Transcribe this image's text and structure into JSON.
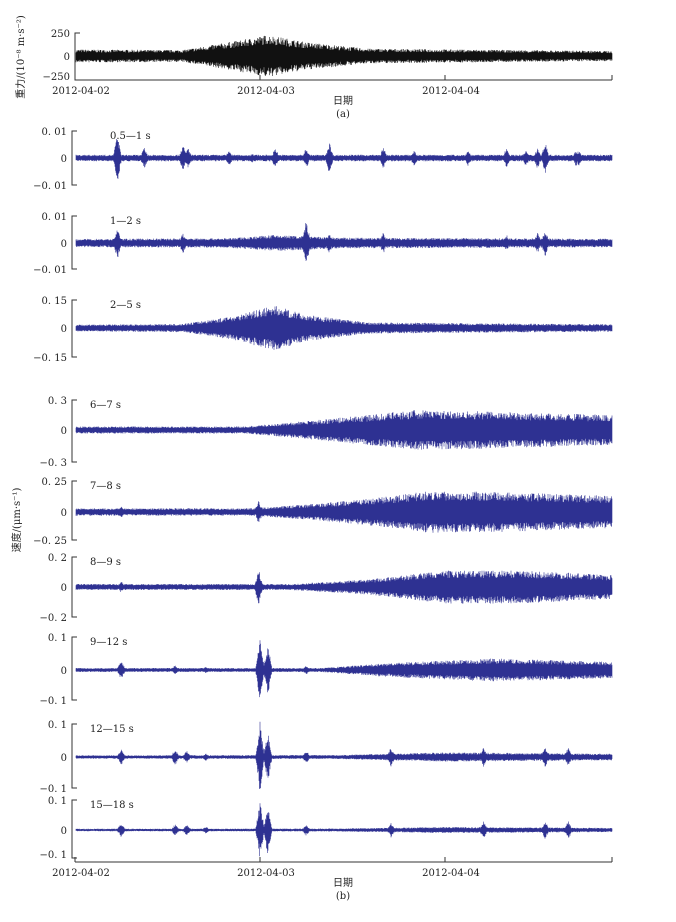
{
  "chart_data": [
    {
      "type": "line",
      "panel": "(a)",
      "ylabel": "重力/(10⁻⁸ m·s⁻²)",
      "xlabel": "日期",
      "caption": "(a)",
      "xticks": [
        "2012-04-02",
        "2012-04-03",
        "2012-04-04"
      ],
      "xlim": [
        "2012-04-02 00:00",
        "2012-04-04 21:36"
      ],
      "ylim": [
        -250,
        250
      ],
      "yticks": [
        "250",
        "0",
        "-250"
      ],
      "color": "#111111",
      "envelope": [
        [
          "2012-04-02 00:00",
          70
        ],
        [
          "2012-04-02 14:00",
          65
        ],
        [
          "2012-04-02 22:00",
          180
        ],
        [
          "2012-04-03 01:00",
          230
        ],
        [
          "2012-04-03 06:00",
          150
        ],
        [
          "2012-04-03 14:00",
          80
        ],
        [
          "2012-04-04 21:36",
          55
        ]
      ],
      "spikes": []
    },
    {
      "type": "line",
      "band": "0.5—1 s",
      "ylim": [
        -0.01,
        0.01
      ],
      "yticks": [
        "0.01",
        "0",
        "-0.01"
      ],
      "color": "#2e3192",
      "envelope": [
        [
          "2012-04-02 00:00",
          0.0012
        ],
        [
          "2012-04-04 21:36",
          0.0012
        ]
      ],
      "spikes": [
        [
          "2012-04-02 05:30",
          0.009
        ],
        [
          "2012-04-02 09:00",
          0.004
        ],
        [
          "2012-04-02 14:00",
          0.005
        ],
        [
          "2012-04-02 14:40",
          0.004
        ],
        [
          "2012-04-02 20:00",
          0.003
        ],
        [
          "2012-04-02 23:00",
          0.002
        ],
        [
          "2012-04-03 02:00",
          0.004
        ],
        [
          "2012-04-03 06:00",
          0.004
        ],
        [
          "2012-04-03 09:00",
          0.006
        ],
        [
          "2012-04-03 16:00",
          0.004
        ],
        [
          "2012-04-03 20:00",
          0.003
        ],
        [
          "2012-04-04 03:00",
          0.003
        ],
        [
          "2012-04-04 08:00",
          0.004
        ],
        [
          "2012-04-04 10:30",
          0.003
        ],
        [
          "2012-04-04 12:00",
          0.004
        ],
        [
          "2012-04-04 13:00",
          0.006
        ],
        [
          "2012-04-04 17:00",
          0.003
        ],
        [
          "2012-04-04 17:20",
          0.003
        ]
      ]
    },
    {
      "type": "line",
      "band": "1—2 s",
      "ylim": [
        -0.01,
        0.01
      ],
      "yticks": [
        "0.01",
        "0",
        "-0.01"
      ],
      "color": "#2e3192",
      "envelope": [
        [
          "2012-04-02 00:00",
          0.0015
        ],
        [
          "2012-04-02 20:00",
          0.0018
        ],
        [
          "2012-04-03 02:00",
          0.003
        ],
        [
          "2012-04-03 10:00",
          0.002
        ],
        [
          "2012-04-04 21:36",
          0.0016
        ]
      ],
      "spikes": [
        [
          "2012-04-02 05:30",
          0.006
        ],
        [
          "2012-04-02 14:00",
          0.004
        ],
        [
          "2012-04-03 02:00",
          0.003
        ],
        [
          "2012-04-03 06:00",
          0.009
        ],
        [
          "2012-04-03 09:00",
          0.004
        ],
        [
          "2012-04-03 16:00",
          0.004
        ],
        [
          "2012-04-04 08:00",
          0.003
        ],
        [
          "2012-04-04 12:00",
          0.004
        ],
        [
          "2012-04-04 13:00",
          0.005
        ]
      ]
    },
    {
      "type": "line",
      "band": "2—5 s",
      "ylim": [
        -0.15,
        0.15
      ],
      "yticks": [
        "0.15",
        "0",
        "-0.15"
      ],
      "color": "#2e3192",
      "envelope": [
        [
          "2012-04-02 00:00",
          0.018
        ],
        [
          "2012-04-02 14:00",
          0.022
        ],
        [
          "2012-04-02 20:00",
          0.06
        ],
        [
          "2012-04-03 02:00",
          0.12
        ],
        [
          "2012-04-03 06:00",
          0.07
        ],
        [
          "2012-04-03 14:00",
          0.03
        ],
        [
          "2012-04-04 21:36",
          0.02
        ]
      ],
      "spikes": []
    },
    {
      "type": "line",
      "band": "6—7 s",
      "ylim": [
        -0.3,
        0.3
      ],
      "yticks": [
        "0.3",
        "0",
        "-0.3"
      ],
      "color": "#2e3192",
      "envelope": [
        [
          "2012-04-02 00:00",
          0.035
        ],
        [
          "2012-04-02 22:00",
          0.035
        ],
        [
          "2012-04-03 06:00",
          0.09
        ],
        [
          "2012-04-03 14:00",
          0.15
        ],
        [
          "2012-04-03 20:00",
          0.2
        ],
        [
          "2012-04-04 04:00",
          0.19
        ],
        [
          "2012-04-04 21:36",
          0.15
        ]
      ],
      "spikes": []
    },
    {
      "type": "line",
      "band": "7—8 s",
      "ylim": [
        -0.25,
        0.25
      ],
      "yticks": [
        "0.25",
        "0",
        "-0.25"
      ],
      "color": "#2e3192",
      "envelope": [
        [
          "2012-04-02 00:00",
          0.03
        ],
        [
          "2012-04-02 23:00",
          0.03
        ],
        [
          "2012-04-03 08:00",
          0.07
        ],
        [
          "2012-04-03 16:00",
          0.12
        ],
        [
          "2012-04-03 22:00",
          0.17
        ],
        [
          "2012-04-04 08:00",
          0.16
        ],
        [
          "2012-04-04 21:36",
          0.13
        ]
      ],
      "spikes": [
        [
          "2012-04-02 06:00",
          0.05
        ],
        [
          "2012-04-02 23:50",
          0.1
        ]
      ]
    },
    {
      "type": "line",
      "band": "8—9 s",
      "ylim": [
        -0.2,
        0.2
      ],
      "yticks": [
        "0.2",
        "0",
        "-0.2"
      ],
      "color": "#2e3192",
      "envelope": [
        [
          "2012-04-02 00:00",
          0.02
        ],
        [
          "2012-04-03 04:00",
          0.02
        ],
        [
          "2012-04-03 14:00",
          0.05
        ],
        [
          "2012-04-04 00:00",
          0.11
        ],
        [
          "2012-04-04 10:00",
          0.11
        ],
        [
          "2012-04-04 21:36",
          0.08
        ]
      ],
      "spikes": [
        [
          "2012-04-02 06:00",
          0.04
        ],
        [
          "2012-04-02 23:50",
          0.12
        ]
      ]
    },
    {
      "type": "line",
      "band": "9—12 s",
      "ylim": [
        -0.1,
        0.1
      ],
      "yticks": [
        "0.1",
        "0",
        "-0.1"
      ],
      "color": "#2e3192",
      "envelope": [
        [
          "2012-04-02 00:00",
          0.006
        ],
        [
          "2012-04-03 08:00",
          0.006
        ],
        [
          "2012-04-03 16:00",
          0.02
        ],
        [
          "2012-04-04 06:00",
          0.035
        ],
        [
          "2012-04-04 21:36",
          0.025
        ]
      ],
      "spikes": [
        [
          "2012-04-02 06:00",
          0.03
        ],
        [
          "2012-04-02 13:00",
          0.015
        ],
        [
          "2012-04-02 17:00",
          0.01
        ],
        [
          "2012-04-03 00:00",
          0.1
        ],
        [
          "2012-04-03 01:00",
          0.08
        ],
        [
          "2012-04-03 06:00",
          0.015
        ],
        [
          "2012-04-04 05:00",
          0.03
        ],
        [
          "2012-04-04 13:00",
          0.03
        ]
      ]
    },
    {
      "type": "line",
      "band": "12—15 s",
      "ylim": [
        -0.1,
        0.1
      ],
      "yticks": [
        "0.1",
        "0",
        "-0.1"
      ],
      "color": "#2e3192",
      "envelope": [
        [
          "2012-04-02 00:00",
          0.005
        ],
        [
          "2012-04-03 10:00",
          0.006
        ],
        [
          "2012-04-04 00:00",
          0.014
        ],
        [
          "2012-04-04 21:36",
          0.01
        ]
      ],
      "spikes": [
        [
          "2012-04-02 06:00",
          0.025
        ],
        [
          "2012-04-02 13:00",
          0.025
        ],
        [
          "2012-04-02 14:30",
          0.02
        ],
        [
          "2012-04-02 17:00",
          0.012
        ],
        [
          "2012-04-03 00:00",
          0.11
        ],
        [
          "2012-04-03 01:00",
          0.08
        ],
        [
          "2012-04-03 06:00",
          0.02
        ],
        [
          "2012-04-03 17:00",
          0.03
        ],
        [
          "2012-04-04 05:00",
          0.03
        ],
        [
          "2012-04-04 13:00",
          0.03
        ],
        [
          "2012-04-04 16:00",
          0.03
        ]
      ]
    },
    {
      "type": "line",
      "band": "15—18 s",
      "ylim": [
        -0.1,
        0.1
      ],
      "yticks": [
        "0.1",
        "0",
        "-0.1"
      ],
      "color": "#2e3192",
      "xlabel": "日期",
      "caption": "(b)",
      "xticks": [
        "2012-04-02",
        "2012-04-03",
        "2012-04-04"
      ],
      "envelope": [
        [
          "2012-04-02 00:00",
          0.004
        ],
        [
          "2012-04-03 10:00",
          0.005
        ],
        [
          "2012-04-04 00:00",
          0.01
        ],
        [
          "2012-04-04 21:36",
          0.007
        ]
      ],
      "spikes": [
        [
          "2012-04-02 06:00",
          0.025
        ],
        [
          "2012-04-02 13:00",
          0.02
        ],
        [
          "2012-04-02 14:30",
          0.02
        ],
        [
          "2012-04-02 17:00",
          0.012
        ],
        [
          "2012-04-03 00:00",
          0.1
        ],
        [
          "2012-04-03 01:00",
          0.09
        ],
        [
          "2012-04-03 06:00",
          0.02
        ],
        [
          "2012-04-03 17:00",
          0.025
        ],
        [
          "2012-04-04 05:00",
          0.03
        ],
        [
          "2012-04-04 13:00",
          0.03
        ],
        [
          "2012-04-04 16:00",
          0.03
        ]
      ]
    }
  ],
  "velocity_ylabel": "速度/(μm·s⁻¹)"
}
